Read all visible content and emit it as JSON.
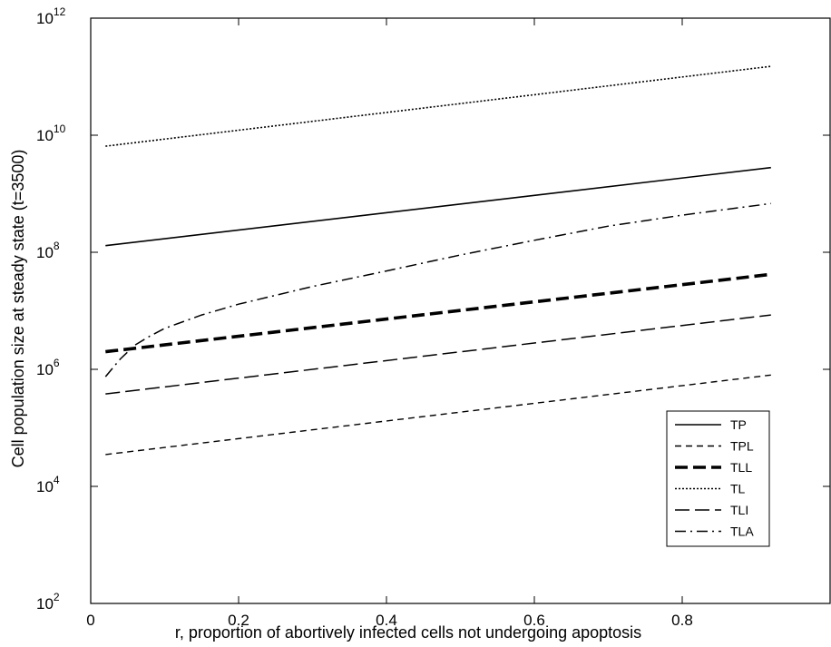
{
  "chart_data": {
    "type": "line",
    "xlabel": "r, proportion of abortively infected cells not undergoing apoptosis",
    "ylabel": "Cell population size at steady state (t=3500)",
    "xlim": [
      0,
      1
    ],
    "ylim": [
      100,
      1000000000000
    ],
    "yscale": "log",
    "grid": false,
    "legend_position": "bottom-right",
    "x_ticks": [
      {
        "value": 0,
        "label": "0"
      },
      {
        "value": 0.2,
        "label": "0.2"
      },
      {
        "value": 0.4,
        "label": "0.4"
      },
      {
        "value": 0.6,
        "label": "0.6"
      },
      {
        "value": 0.8,
        "label": "0.8"
      },
      {
        "value": 1,
        "label": ""
      }
    ],
    "y_ticks": [
      {
        "value": 100,
        "base": "10",
        "exp": "2"
      },
      {
        "value": 10000,
        "base": "10",
        "exp": "4"
      },
      {
        "value": 1000000,
        "base": "10",
        "exp": "6"
      },
      {
        "value": 100000000,
        "base": "10",
        "exp": "8"
      },
      {
        "value": 10000000000,
        "base": "10",
        "exp": "10"
      },
      {
        "value": 1000000000000,
        "base": "10",
        "exp": "12"
      }
    ],
    "series": [
      {
        "name": "TP",
        "style": "solid",
        "x": [
          0.02,
          0.92
        ],
        "y": [
          130000000,
          2800000000
        ]
      },
      {
        "name": "TPL",
        "style": "dashed",
        "x": [
          0.02,
          0.92
        ],
        "y": [
          35000,
          800000
        ]
      },
      {
        "name": "TLL",
        "style": "bold-dashed",
        "x": [
          0.02,
          0.92
        ],
        "y": [
          2000000,
          42000000
        ]
      },
      {
        "name": "TL",
        "style": "dotted",
        "x": [
          0.02,
          0.92
        ],
        "y": [
          6500000000,
          150000000000
        ]
      },
      {
        "name": "TLI",
        "style": "long-dashed",
        "x": [
          0.02,
          0.92
        ],
        "y": [
          380000,
          8500000
        ]
      },
      {
        "name": "TLA",
        "style": "dash-dot",
        "x": [
          0.02,
          0.04,
          0.06,
          0.08,
          0.1,
          0.15,
          0.2,
          0.3,
          0.4,
          0.5,
          0.6,
          0.7,
          0.8,
          0.92
        ],
        "y": [
          750000,
          1500000,
          2600000,
          3700000,
          5000000,
          8500000,
          13000000,
          26000000,
          48000000,
          90000000,
          160000000,
          280000000,
          430000000,
          680000000
        ]
      }
    ]
  }
}
